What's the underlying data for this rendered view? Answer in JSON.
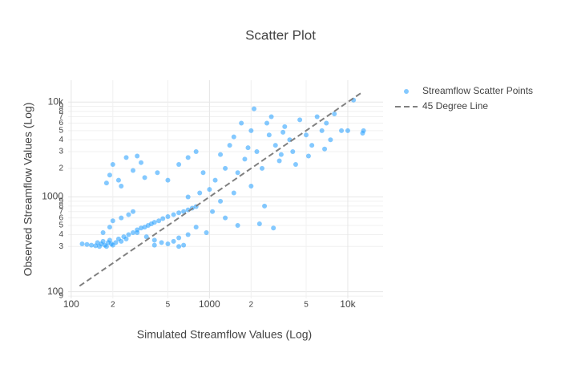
{
  "chart_data": {
    "type": "scatter",
    "title": "Scatter Plot",
    "x_label": "Simulated Streamflow Values (Log)",
    "y_label": "Observed Streamflow Values (Log)",
    "log_x": true,
    "log_y": true,
    "grid": true,
    "xlim": [
      95,
      18000
    ],
    "ylim": [
      85,
      17000
    ],
    "xticks": [
      100,
      {
        "value": 200,
        "label": "2"
      },
      {
        "value": 500,
        "label": "5"
      },
      1000,
      {
        "value": 2000,
        "label": "2"
      },
      {
        "value": 5000,
        "label": "5"
      },
      {
        "value": 10000,
        "label": "10k"
      }
    ],
    "yticks": [
      {
        "value": 90,
        "label": "9"
      },
      100,
      {
        "value": 300,
        "label": "3"
      },
      {
        "value": 400,
        "label": "4"
      },
      {
        "value": 500,
        "label": "5"
      },
      {
        "value": 600,
        "label": "6"
      },
      {
        "value": 700,
        "label": "7"
      },
      {
        "value": 800,
        "label": "8"
      },
      {
        "value": 900,
        "label": "9"
      },
      1000,
      {
        "value": 2000,
        "label": "2"
      },
      {
        "value": 3000,
        "label": "3"
      },
      {
        "value": 4000,
        "label": "4"
      },
      {
        "value": 5000,
        "label": "5"
      },
      {
        "value": 6000,
        "label": "6"
      },
      {
        "value": 7000,
        "label": "7"
      },
      {
        "value": 8000,
        "label": "8"
      },
      {
        "value": 9000,
        "label": "9"
      },
      {
        "value": 10000,
        "label": "10k"
      }
    ],
    "series": [
      {
        "name": "Streamflow Scatter Points",
        "mode": "markers",
        "color": "#1f9cff",
        "x": [
          120,
          130,
          140,
          150,
          155,
          160,
          165,
          170,
          175,
          180,
          185,
          190,
          195,
          200,
          210,
          220,
          230,
          240,
          250,
          260,
          280,
          300,
          320,
          340,
          360,
          380,
          400,
          430,
          460,
          500,
          550,
          600,
          650,
          700,
          750,
          800,
          170,
          190,
          200,
          230,
          260,
          280,
          300,
          350,
          400,
          450,
          500,
          550,
          600,
          700,
          190,
          200,
          220,
          250,
          280,
          300,
          230,
          340,
          180,
          320,
          420,
          500,
          600,
          700,
          800,
          1000,
          1100,
          1200,
          1300,
          1500,
          1600,
          1800,
          2000,
          2200,
          2400,
          2500,
          2700,
          3000,
          3200,
          3500,
          3800,
          4000,
          4500,
          5000,
          5500,
          6000,
          6500,
          7000,
          7500,
          8000,
          9000,
          10000,
          11000,
          13000,
          12800,
          2100,
          1700,
          1400,
          2800,
          3300,
          900,
          1050,
          1600,
          2300,
          2900,
          800,
          950,
          1300,
          4200,
          5200,
          6800,
          2000,
          2600,
          3400,
          1900,
          1500,
          1200,
          700,
          850,
          600,
          650,
          400
        ],
        "y": [
          320,
          315,
          310,
          305,
          330,
          300,
          320,
          340,
          310,
          300,
          330,
          350,
          320,
          310,
          330,
          360,
          340,
          380,
          360,
          400,
          420,
          450,
          470,
          480,
          500,
          520,
          540,
          560,
          590,
          620,
          650,
          680,
          700,
          730,
          760,
          790,
          420,
          480,
          560,
          600,
          650,
          700,
          420,
          380,
          350,
          330,
          320,
          340,
          370,
          400,
          1700,
          2200,
          1500,
          2600,
          1900,
          2700,
          1300,
          1600,
          1400,
          2300,
          1800,
          1500,
          2200,
          2600,
          3000,
          1200,
          1500,
          900,
          2000,
          1100,
          1800,
          2500,
          1300,
          3000,
          2000,
          800,
          4500,
          3500,
          2400,
          5500,
          4000,
          3000,
          6500,
          4500,
          3500,
          7000,
          5000,
          6000,
          4000,
          7500,
          5000,
          5000,
          10500,
          5000,
          4700,
          8500,
          6000,
          3500,
          7000,
          2800,
          1800,
          700,
          500,
          520,
          470,
          480,
          420,
          600,
          2200,
          2700,
          3200,
          5000,
          6000,
          4800,
          3300,
          4300,
          2800,
          1000,
          1100,
          300,
          310,
          310
        ]
      },
      {
        "name": "45 Degree Line",
        "mode": "lines",
        "color": "#808080",
        "dash": true,
        "x": [
          115,
          12500
        ],
        "y": [
          115,
          12500
        ]
      }
    ]
  }
}
